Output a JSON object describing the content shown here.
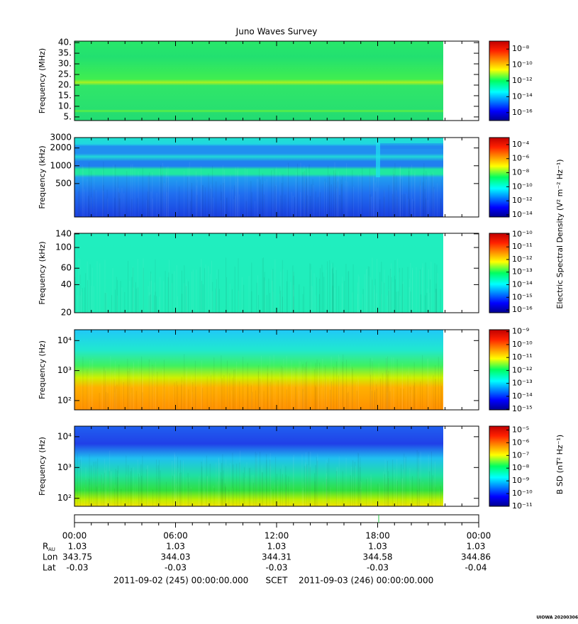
{
  "title": "Juno Waves Survey",
  "chart_data": [
    {
      "type": "spectrogram",
      "ylabel": "Frequency (MHz)",
      "ylog": false,
      "ylim": [
        3.3,
        40.7
      ],
      "yticks": [
        {
          "value": 5,
          "label": "5."
        },
        {
          "value": 10,
          "label": "10."
        },
        {
          "value": 15,
          "label": "15."
        },
        {
          "value": 20,
          "label": "20."
        },
        {
          "value": 25,
          "label": "25."
        },
        {
          "value": 30,
          "label": "30."
        },
        {
          "value": 35,
          "label": "35."
        },
        {
          "value": 40,
          "label": "40."
        }
      ],
      "clim": [
        1e-17,
        1e-07
      ],
      "cticks": [
        {
          "value": 1e-08,
          "label": "10⁻⁸"
        },
        {
          "value": 1e-10,
          "label": "10⁻¹⁰"
        },
        {
          "value": 1e-12,
          "label": "10⁻¹²"
        },
        {
          "value": 1e-14,
          "label": "10⁻¹⁴"
        },
        {
          "value": 1e-16,
          "label": "10⁻¹⁶"
        }
      ]
    },
    {
      "type": "spectrogram",
      "ylabel": "Frequency (kHz)",
      "ylog": true,
      "ylim": [
        136,
        3000
      ],
      "yticks": [
        500,
        1000,
        2000,
        3000
      ],
      "clim": [
        5e-15,
        0.001
      ],
      "cticks": [
        {
          "value": 0.0001,
          "label": "10⁻⁴"
        },
        {
          "value": 1e-06,
          "label": "10⁻⁶"
        },
        {
          "value": 1e-08,
          "label": "10⁻⁸"
        },
        {
          "value": 1e-10,
          "label": "10⁻¹⁰"
        },
        {
          "value": 1e-12,
          "label": "10⁻¹²"
        },
        {
          "value": 1e-14,
          "label": "10⁻¹⁴"
        }
      ]
    },
    {
      "type": "spectrogram",
      "ylabel": "Frequency (kHz)",
      "ylog": true,
      "ylim": [
        20,
        142
      ],
      "yticks": [
        20,
        40,
        60,
        100,
        140
      ],
      "clim": [
        6e-17,
        1.2e-10
      ],
      "cticks": [
        {
          "value": 1e-10,
          "label": "10⁻¹⁰"
        },
        {
          "value": 1e-11,
          "label": "10⁻¹¹"
        },
        {
          "value": 1e-12,
          "label": "10⁻¹²"
        },
        {
          "value": 1e-13,
          "label": "10⁻¹³"
        },
        {
          "value": 1e-14,
          "label": "10⁻¹⁴"
        },
        {
          "value": 1e-15,
          "label": "10⁻¹⁵"
        },
        {
          "value": 1e-16,
          "label": "10⁻¹⁶"
        }
      ]
    },
    {
      "type": "spectrogram",
      "ylabel": "Frequency (Hz)",
      "ylog": true,
      "ylim": [
        49,
        23000
      ],
      "yticks": [
        {
          "value": 100,
          "label": "10²"
        },
        {
          "value": 1000,
          "label": "10³"
        },
        {
          "value": 10000,
          "label": "10⁴"
        }
      ],
      "clim": [
        9e-16,
        1.4e-09
      ],
      "cticks": [
        {
          "value": 1e-09,
          "label": "10⁻⁹"
        },
        {
          "value": 1e-10,
          "label": "10⁻¹⁰"
        },
        {
          "value": 1e-11,
          "label": "10⁻¹¹"
        },
        {
          "value": 1e-12,
          "label": "10⁻¹²"
        },
        {
          "value": 1e-13,
          "label": "10⁻¹³"
        },
        {
          "value": 1e-14,
          "label": "10⁻¹⁴"
        },
        {
          "value": 1e-15,
          "label": "10⁻¹⁵"
        }
      ]
    },
    {
      "type": "spectrogram",
      "ylabel": "Frequency (Hz)",
      "ylog": true,
      "ylim": [
        55,
        22000
      ],
      "yticks": [
        {
          "value": 100,
          "label": "10²"
        },
        {
          "value": 1000,
          "label": "10³"
        },
        {
          "value": 10000,
          "label": "10⁴"
        }
      ],
      "clim": [
        1e-11,
        2e-05
      ],
      "cticks": [
        {
          "value": 1e-05,
          "label": "10⁻⁵"
        },
        {
          "value": 1e-06,
          "label": "10⁻⁶"
        },
        {
          "value": 1e-07,
          "label": "10⁻⁷"
        },
        {
          "value": 1e-08,
          "label": "10⁻⁸"
        },
        {
          "value": 1e-09,
          "label": "10⁻⁹"
        },
        {
          "value": 1e-10,
          "label": "10⁻¹⁰"
        },
        {
          "value": 1e-11,
          "label": "10⁻¹¹"
        }
      ]
    }
  ],
  "colorbar_labels": [
    "Electric Spectral Density (V² m⁻² Hz⁻¹)",
    "B SD (nT² Hz⁻¹)"
  ],
  "time_axis": {
    "xlim": [
      0,
      24
    ],
    "xticks": [
      {
        "value": 0,
        "label": "00:00"
      },
      {
        "value": 6,
        "label": "06:00"
      },
      {
        "value": 12,
        "label": "12:00"
      },
      {
        "value": 18,
        "label": "18:00"
      },
      {
        "value": 24,
        "label": "00:00"
      }
    ],
    "rows": [
      {
        "label": "R",
        "subscript": "AU",
        "values": [
          1.03,
          1.03,
          1.03,
          1.03,
          1.03
        ]
      },
      {
        "label": "Lon",
        "values": [
          343.75,
          344.03,
          344.31,
          344.58,
          344.86
        ]
      },
      {
        "label": "Lat",
        "values": [
          -0.03,
          -0.03,
          -0.03,
          -0.03,
          -0.04
        ]
      }
    ]
  },
  "footer": [
    "2011-09-02 (245) 00:00:00.000",
    "SCET",
    "2011-09-03 (246) 00:00:00.000"
  ],
  "stamp": "UIOWA 20200306"
}
